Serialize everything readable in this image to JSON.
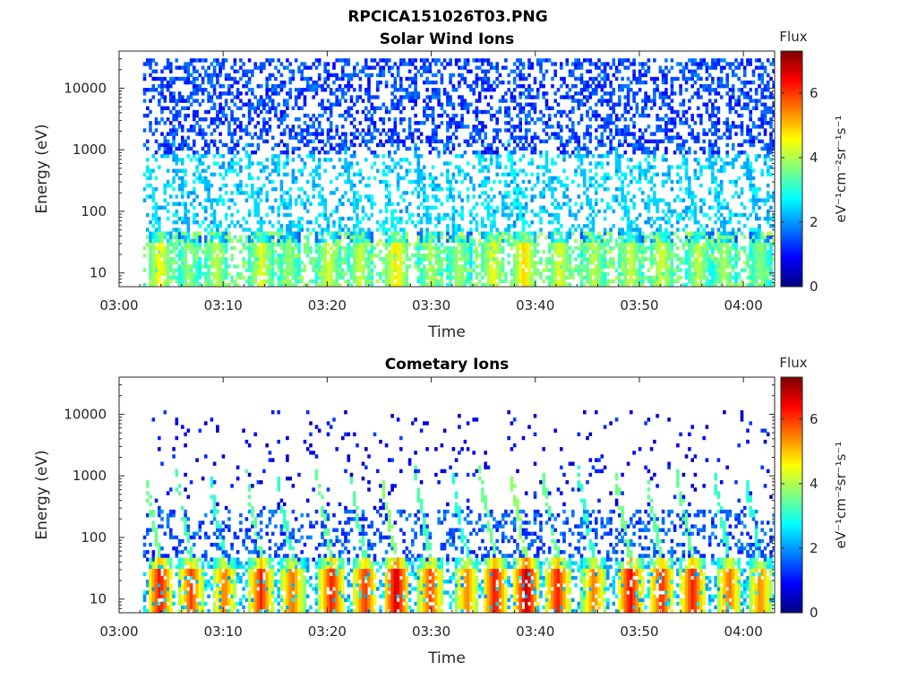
{
  "figure_title": "RPCICA151026T03.PNG",
  "colormap": [
    "#00007f",
    "#0000ff",
    "#007fff",
    "#00ffff",
    "#7fff7f",
    "#ffff00",
    "#ff7f00",
    "#ff0000",
    "#7f0000"
  ],
  "chart_data": [
    {
      "type": "heatmap",
      "title": "Solar Wind Ions",
      "xlabel": "Time",
      "ylabel": "Energy (eV)",
      "x_tick_labels": [
        "03:00",
        "03:10",
        "03:20",
        "03:30",
        "03:40",
        "03:50",
        "04:00"
      ],
      "x_range_minutes": [
        0,
        63
      ],
      "y_scale": "log",
      "y_tick_values": [
        10,
        100,
        1000,
        10000
      ],
      "y_tick_labels": [
        "10",
        "100",
        "1000",
        "10000"
      ],
      "ylim": [
        6,
        40000
      ],
      "colorbar": {
        "label": "Flux",
        "units": "eV⁻¹cm⁻²sr⁻¹s⁻¹",
        "ticks": [
          0,
          2,
          4,
          6
        ],
        "range": [
          0,
          7.3
        ]
      },
      "data_coverage": {
        "start_minute": 2.3,
        "end_minute": 62.8
      },
      "background_flux": {
        "high_energy_range_eV": [
          800,
          30000
        ],
        "high_energy_flux": 1.4,
        "mid_energy_range_eV": [
          50,
          800
        ],
        "mid_energy_flux": 2.4,
        "low_energy_range_eV": [
          6,
          50
        ],
        "low_energy_flux": 3.6
      },
      "bursts": [
        {
          "minute": 3.8,
          "peak_flux": 4.7
        },
        {
          "minute": 6.6,
          "peak_flux": 3.9
        },
        {
          "minute": 9.2,
          "peak_flux": 4.2
        },
        {
          "minute": 13.5,
          "peak_flux": 4.5
        },
        {
          "minute": 16.2,
          "peak_flux": 3.9
        },
        {
          "minute": 20.0,
          "peak_flux": 4.4
        },
        {
          "minute": 23.0,
          "peak_flux": 4.3
        },
        {
          "minute": 26.5,
          "peak_flux": 4.9
        },
        {
          "minute": 29.8,
          "peak_flux": 4.1
        },
        {
          "minute": 32.5,
          "peak_flux": 4.0
        },
        {
          "minute": 35.8,
          "peak_flux": 4.6
        },
        {
          "minute": 38.8,
          "peak_flux": 5.0
        },
        {
          "minute": 42.2,
          "peak_flux": 4.5
        },
        {
          "minute": 45.5,
          "peak_flux": 4.2
        },
        {
          "minute": 49.0,
          "peak_flux": 4.3
        },
        {
          "minute": 52.0,
          "peak_flux": 4.4
        },
        {
          "minute": 55.5,
          "peak_flux": 4.2
        },
        {
          "minute": 58.0,
          "peak_flux": 4.0
        },
        {
          "minute": 61.5,
          "peak_flux": 3.8
        }
      ]
    },
    {
      "type": "heatmap",
      "title": "Cometary Ions",
      "xlabel": "Time",
      "ylabel": "Energy (eV)",
      "x_tick_labels": [
        "03:00",
        "03:10",
        "03:20",
        "03:30",
        "03:40",
        "03:50",
        "04:00"
      ],
      "x_range_minutes": [
        0,
        63
      ],
      "y_scale": "log",
      "y_tick_values": [
        10,
        100,
        1000,
        10000
      ],
      "y_tick_labels": [
        "10",
        "100",
        "1000",
        "10000"
      ],
      "ylim": [
        6,
        40000
      ],
      "colorbar": {
        "label": "Flux",
        "units": "eV⁻¹cm⁻²sr⁻¹s⁻¹",
        "ticks": [
          0,
          2,
          4,
          6
        ],
        "range": [
          0,
          7.3
        ]
      },
      "data_coverage": {
        "start_minute": 2.3,
        "end_minute": 62.8
      },
      "background_flux": {
        "high_energy_range_eV": [
          300,
          12000
        ],
        "high_energy_flux": 0.9,
        "mid_energy_range_eV": [
          40,
          300
        ],
        "mid_energy_flux": 1.5,
        "low_energy_range_eV": [
          6,
          40
        ],
        "low_energy_flux": 2.4
      },
      "bursts": [
        {
          "minute": 3.8,
          "peak_flux": 6.4
        },
        {
          "minute": 6.8,
          "peak_flux": 6.0
        },
        {
          "minute": 10.0,
          "peak_flux": 5.6
        },
        {
          "minute": 13.5,
          "peak_flux": 6.2
        },
        {
          "minute": 16.5,
          "peak_flux": 5.7
        },
        {
          "minute": 20.3,
          "peak_flux": 6.3
        },
        {
          "minute": 23.5,
          "peak_flux": 6.1
        },
        {
          "minute": 26.5,
          "peak_flux": 6.8
        },
        {
          "minute": 29.8,
          "peak_flux": 6.0
        },
        {
          "minute": 33.3,
          "peak_flux": 5.5
        },
        {
          "minute": 36.0,
          "peak_flux": 6.4
        },
        {
          "minute": 39.0,
          "peak_flux": 6.9
        },
        {
          "minute": 42.0,
          "peak_flux": 6.3
        },
        {
          "minute": 45.5,
          "peak_flux": 5.6
        },
        {
          "minute": 49.0,
          "peak_flux": 6.5
        },
        {
          "minute": 52.0,
          "peak_flux": 6.2
        },
        {
          "minute": 55.0,
          "peak_flux": 6.3
        },
        {
          "minute": 58.5,
          "peak_flux": 5.7
        },
        {
          "minute": 61.5,
          "peak_flux": 5.5
        }
      ]
    }
  ]
}
